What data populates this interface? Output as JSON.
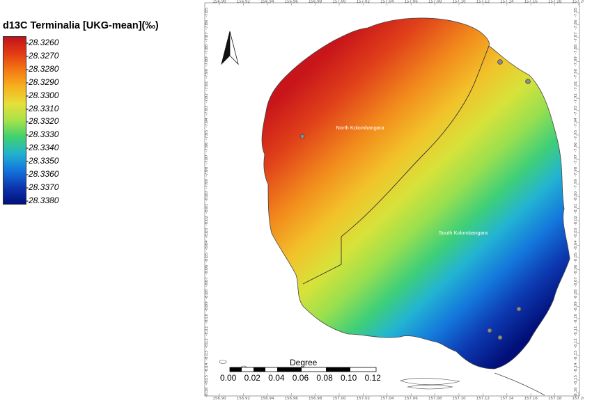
{
  "legend": {
    "title": "d13C Terminalia [UKG-mean](‰)",
    "labels": [
      "-28.3260",
      "-28.3270",
      "-28.3280",
      "-28.3290",
      "-28.3300",
      "-28.3310",
      "-28.3320",
      "-28.3330",
      "-28.3340",
      "-28.3350",
      "-28.3360",
      "-28.3370",
      "-28.3380"
    ]
  },
  "map": {
    "top_ticks": [
      "156.90",
      "156.92",
      "156.94",
      "156.96",
      "156.98",
      "157.00",
      "157.02",
      "157.04",
      "157.06",
      "157.08",
      "157.10",
      "157.12",
      "157.14",
      "157.16",
      "157.18",
      "157.20"
    ],
    "bottom_ticks": [
      "156.90",
      "156.92",
      "156.94",
      "156.96",
      "156.98",
      "157.00",
      "157.02",
      "157.04",
      "157.06",
      "157.08",
      "157.10",
      "157.12",
      "157.14",
      "157.16",
      "157.18",
      "157.20"
    ],
    "side_ticks": [
      "-7.85",
      "-7.86",
      "-7.87",
      "-7.88",
      "-7.89",
      "-7.90",
      "-7.91",
      "-7.92",
      "-7.93",
      "-7.94",
      "-7.95",
      "-7.96",
      "-7.97",
      "-7.98",
      "-7.99",
      "-8.00",
      "-8.01",
      "-8.02",
      "-8.03",
      "-8.04",
      "-8.05",
      "-8.06",
      "-8.07",
      "-8.08",
      "-8.09",
      "-8.10",
      "-8.11",
      "-8.12",
      "-8.13",
      "-8.14",
      "-8.15",
      "-8.16"
    ],
    "regions": [
      "North Kolombangara",
      "South Kolombangara"
    ],
    "north_arrow": "north-arrow-icon"
  },
  "scale_bar": {
    "title": "Degree",
    "labels": [
      "0.00",
      "0.02",
      "0.04",
      "0.06",
      "0.08",
      "0.10",
      "0.12"
    ]
  }
}
